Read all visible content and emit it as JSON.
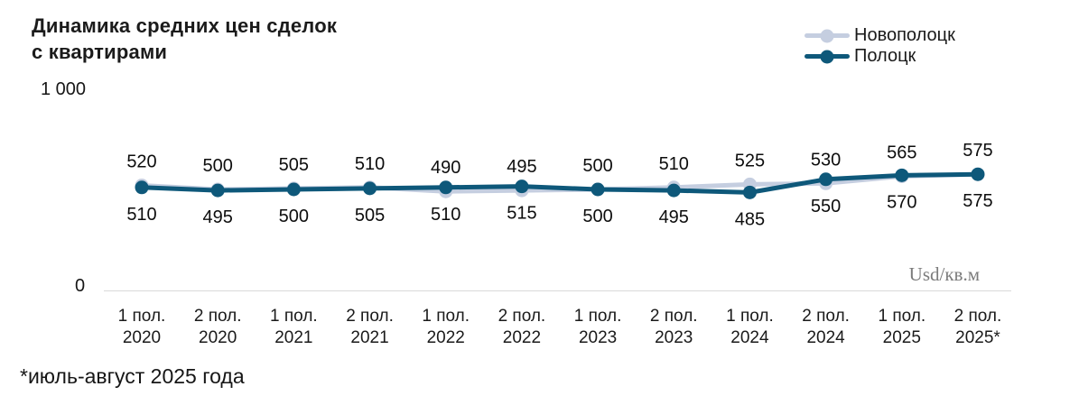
{
  "title": {
    "line1": "Динамика средних цен сделок",
    "line2": "с квартирами"
  },
  "legend": {
    "items": [
      {
        "id": "novopolotsk",
        "label": "Новополоцк",
        "color": "#c5cee0"
      },
      {
        "id": "polotsk",
        "label": "Полоцк",
        "color": "#0e587a"
      }
    ]
  },
  "y_axis": {
    "max_label": "1 000",
    "min_label": "0"
  },
  "unit_label": "Usd/кв.м",
  "footnote": "*июль-август 2025 года",
  "chart_data": {
    "type": "line",
    "title": "Динамика средних цен сделок с квартирами",
    "ylabel": "Usd/кв.м",
    "ylim": [
      0,
      1000
    ],
    "grid": false,
    "legend_position": "top-right",
    "categories": [
      [
        "1 пол.",
        "2020"
      ],
      [
        "2 пол.",
        "2020"
      ],
      [
        "1 пол.",
        "2021"
      ],
      [
        "2 пол.",
        "2021"
      ],
      [
        "1 пол.",
        "2022"
      ],
      [
        "2 пол.",
        "2022"
      ],
      [
        "1 пол.",
        "2023"
      ],
      [
        "2 пол.",
        "2023"
      ],
      [
        "1 пол.",
        "2024"
      ],
      [
        "2 пол.",
        "2024"
      ],
      [
        "1 пол.",
        "2025"
      ],
      [
        "2 пол.",
        "2025*"
      ]
    ],
    "series": [
      {
        "id": "novopolotsk",
        "name": "Новополоцк",
        "color": "#c5cee0",
        "label_position": "above",
        "values": [
          520,
          500,
          505,
          510,
          490,
          495,
          500,
          510,
          525,
          530,
          565,
          575
        ]
      },
      {
        "id": "polotsk",
        "name": "Полоцк",
        "color": "#0e587a",
        "label_position": "below",
        "values": [
          510,
          495,
          500,
          505,
          510,
          515,
          500,
          495,
          485,
          550,
          570,
          575
        ]
      }
    ]
  }
}
